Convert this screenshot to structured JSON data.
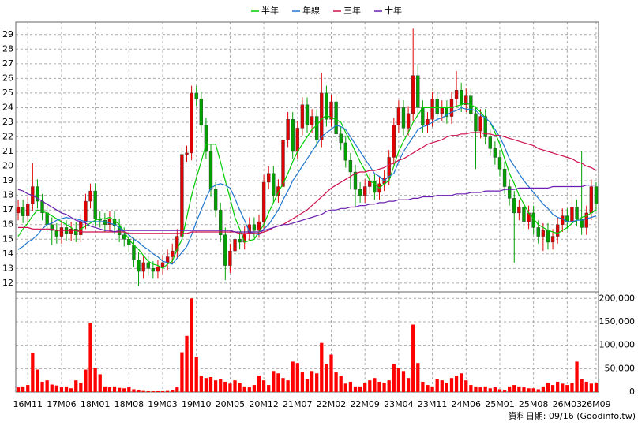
{
  "chart_data": {
    "type": "candlestick",
    "categories": [
      null,
      null,
      "16M11",
      null,
      null,
      null,
      null,
      null,
      null,
      "17M06",
      null,
      null,
      null,
      null,
      null,
      null,
      "18M01",
      null,
      null,
      null,
      null,
      null,
      null,
      "18M08",
      null,
      null,
      null,
      null,
      null,
      null,
      "19M03",
      null,
      null,
      null,
      null,
      null,
      null,
      "19M10",
      null,
      null,
      null,
      null,
      null,
      null,
      "20M05",
      null,
      null,
      null,
      null,
      null,
      null,
      "20M12",
      null,
      null,
      null,
      null,
      null,
      null,
      "21M07",
      null,
      null,
      null,
      null,
      null,
      null,
      "22M02",
      null,
      null,
      null,
      null,
      null,
      null,
      "22M09",
      null,
      null,
      null,
      null,
      null,
      null,
      "23M04",
      null,
      null,
      null,
      null,
      null,
      null,
      "23M11",
      null,
      null,
      null,
      null,
      null,
      null,
      "24M06",
      null,
      null,
      null,
      null,
      null,
      null,
      "25M01",
      null,
      null,
      null,
      null,
      null,
      null,
      "25M08",
      null,
      null,
      null,
      null,
      null,
      null,
      "26M03",
      null,
      null,
      null,
      null,
      null,
      "26M09"
    ],
    "open": [
      16.8,
      17.2,
      16.6,
      17.4,
      18.6,
      17.6,
      16.8,
      16.0,
      15.6,
      15.2,
      15.8,
      15.4,
      15.7,
      15.3,
      16.2,
      17.6,
      18.3,
      16.4,
      16.3,
      16.0,
      16.4,
      15.9,
      15.3,
      15.0,
      14.6,
      13.6,
      12.8,
      13.4,
      13.0,
      12.8,
      13.1,
      13.4,
      13.8,
      14.2,
      15.2,
      20.8,
      20.9,
      25.0,
      24.6,
      22.8,
      21.0,
      18.4,
      17.0,
      15.3,
      13.2,
      14.2,
      15.0,
      14.8,
      15.4,
      16.0,
      15.6,
      16.2,
      18.9,
      19.5,
      18.0,
      18.6,
      21.8,
      23.2,
      21.0,
      22.6,
      24.2,
      22.8,
      23.4,
      21.8,
      25.0,
      23.2,
      24.4,
      22.2,
      21.6,
      20.4,
      19.6,
      18.4,
      18.0,
      18.6,
      19.0,
      18.2,
      18.8,
      19.2,
      20.6,
      22.8,
      24.0,
      22.6,
      23.6,
      26.2,
      24.0,
      22.8,
      23.2,
      24.6,
      23.6,
      24.0,
      23.4,
      24.6,
      25.2,
      24.2,
      24.8,
      23.6,
      22.4,
      23.4,
      22.0,
      21.2,
      20.6,
      19.8,
      18.6,
      17.8,
      16.8,
      17.2,
      16.2,
      16.8,
      15.8,
      15.2,
      15.6,
      14.8,
      15.2,
      16.0,
      16.6,
      16.2,
      17.2,
      16.4,
      15.8,
      16.8,
      18.6
    ],
    "high": [
      17.7,
      17.7,
      17.9,
      20.2,
      19.1,
      18.1,
      17.3,
      16.5,
      16.1,
      16.3,
      16.3,
      16.2,
      16.2,
      16.7,
      18.1,
      18.8,
      18.8,
      16.9,
      16.8,
      16.9,
      16.9,
      16.4,
      15.8,
      15.5,
      15.1,
      14.1,
      13.9,
      13.9,
      13.5,
      13.6,
      13.9,
      14.3,
      14.7,
      15.7,
      21.3,
      21.4,
      25.5,
      25.5,
      25.1,
      23.3,
      21.5,
      18.9,
      17.5,
      15.8,
      14.7,
      15.5,
      15.5,
      15.9,
      16.5,
      16.5,
      16.7,
      19.4,
      20.0,
      20.0,
      19.1,
      22.3,
      23.7,
      23.7,
      23.1,
      24.7,
      24.7,
      23.9,
      23.9,
      26.4,
      25.5,
      24.9,
      24.9,
      22.7,
      22.1,
      20.9,
      20.1,
      18.9,
      19.1,
      19.5,
      19.5,
      19.3,
      19.7,
      21.1,
      23.3,
      24.5,
      24.5,
      24.1,
      29.4,
      27.0,
      24.5,
      23.7,
      25.1,
      25.1,
      24.5,
      24.5,
      25.1,
      26.5,
      25.7,
      25.3,
      25.3,
      24.1,
      23.9,
      23.9,
      22.5,
      21.7,
      21.1,
      20.3,
      19.1,
      18.3,
      17.7,
      17.7,
      17.3,
      17.3,
      16.3,
      16.1,
      16.1,
      15.7,
      16.5,
      17.1,
      17.1,
      19.2,
      17.7,
      21.0,
      17.3,
      19.1,
      18.9
    ],
    "low": [
      16.3,
      16.1,
      16.1,
      16.9,
      17.1,
      16.3,
      15.5,
      14.6,
      14.7,
      14.7,
      14.9,
      14.9,
      14.8,
      14.8,
      15.7,
      17.1,
      15.9,
      15.8,
      15.5,
      15.5,
      15.4,
      14.8,
      14.5,
      14.1,
      13.1,
      11.8,
      12.3,
      12.5,
      12.3,
      12.3,
      12.6,
      12.9,
      13.3,
      13.7,
      14.7,
      20.3,
      20.4,
      24.1,
      22.3,
      20.5,
      17.9,
      16.5,
      14.8,
      12.2,
      12.7,
      13.7,
      14.3,
      14.3,
      14.9,
      15.1,
      15.1,
      15.7,
      18.4,
      17.5,
      17.5,
      18.1,
      21.3,
      20.5,
      20.5,
      22.1,
      22.3,
      22.3,
      21.3,
      21.3,
      22.7,
      22.7,
      21.7,
      21.1,
      19.9,
      18.4,
      17.2,
      17.5,
      17.5,
      18.1,
      17.7,
      17.7,
      18.3,
      18.7,
      20.1,
      22.3,
      22.1,
      22.1,
      23.1,
      23.5,
      22.3,
      22.3,
      22.7,
      23.1,
      23.1,
      22.9,
      22.9,
      24.1,
      23.7,
      23.7,
      23.1,
      19.8,
      21.9,
      21.5,
      20.7,
      20.1,
      19.3,
      18.1,
      17.3,
      13.4,
      16.3,
      15.7,
      15.7,
      15.3,
      14.7,
      14.2,
      14.3,
      14.3,
      14.7,
      15.5,
      15.7,
      15.7,
      15.9,
      15.3,
      15.3,
      16.3,
      16.9
    ],
    "close": [
      17.2,
      16.6,
      17.4,
      18.6,
      17.6,
      16.8,
      16.0,
      15.6,
      15.2,
      15.8,
      15.4,
      15.7,
      15.3,
      16.2,
      17.6,
      18.3,
      16.4,
      16.3,
      16.0,
      16.4,
      15.9,
      15.3,
      15.0,
      14.6,
      13.6,
      12.8,
      13.4,
      13.0,
      12.8,
      13.1,
      13.4,
      13.8,
      14.2,
      15.2,
      20.8,
      20.9,
      25.0,
      24.6,
      22.8,
      21.0,
      18.4,
      17.0,
      15.3,
      13.2,
      14.2,
      15.0,
      14.8,
      15.4,
      16.0,
      15.6,
      16.2,
      18.9,
      19.5,
      18.0,
      18.6,
      21.8,
      23.2,
      21.0,
      22.6,
      24.2,
      22.8,
      23.4,
      21.8,
      25.0,
      23.2,
      24.4,
      22.2,
      21.6,
      20.4,
      19.6,
      18.4,
      18.0,
      18.6,
      19.0,
      18.2,
      18.8,
      19.2,
      20.6,
      22.8,
      24.0,
      22.6,
      23.6,
      26.2,
      24.0,
      22.8,
      23.2,
      24.6,
      23.6,
      24.0,
      23.4,
      24.6,
      25.2,
      24.2,
      24.8,
      23.6,
      22.4,
      23.4,
      22.0,
      21.2,
      20.6,
      19.8,
      18.6,
      17.8,
      16.8,
      17.2,
      16.2,
      16.8,
      15.8,
      15.2,
      15.6,
      14.8,
      15.2,
      16.0,
      16.6,
      16.2,
      17.2,
      16.4,
      15.8,
      16.8,
      18.6,
      17.4
    ],
    "up_color": "#e00000",
    "down_color": "#00a000",
    "series": [
      {
        "name": "半年",
        "color": "#00cc00",
        "values": [
          15.2,
          15.7,
          16.1,
          16.6,
          17.0,
          16.9,
          16.8,
          16.6,
          16.4,
          16.2,
          16.0,
          15.8,
          15.5,
          15.7,
          15.9,
          16.1,
          16.3,
          16.4,
          16.4,
          16.5,
          16.3,
          16.0,
          15.5,
          15.0,
          14.6,
          14.3,
          13.9,
          13.5,
          13.3,
          13.2,
          13.0,
          13.3,
          13.5,
          14.3,
          15.0,
          16.5,
          18.0,
          19.2,
          20.3,
          21.5,
          21.5,
          21.5,
          20.3,
          19.0,
          17.8,
          16.5,
          15.7,
          14.8,
          14.9,
          15.0,
          15.5,
          16.0,
          16.8,
          17.5,
          18.2,
          18.8,
          19.5,
          20.3,
          21.0,
          21.5,
          22.0,
          22.5,
          22.8,
          23.2,
          23.5,
          23.3,
          23.2,
          23.0,
          22.3,
          21.7,
          21.0,
          20.3,
          19.7,
          19.0,
          18.8,
          18.5,
          18.8,
          19.0,
          20.0,
          21.0,
          21.7,
          22.3,
          23.0,
          23.5,
          24.0,
          24.0,
          24.0,
          24.0,
          24.0,
          24.0,
          24.0,
          24.1,
          24.2,
          24.3,
          24.2,
          24.0,
          23.7,
          23.3,
          23.0,
          22.3,
          21.5,
          20.5,
          19.5,
          18.8,
          18.0,
          17.4,
          16.8,
          16.4,
          16.0,
          15.8,
          15.6,
          15.5,
          15.4,
          15.6,
          15.8,
          16.1,
          16.3,
          16.5,
          16.6,
          16.8,
          17.0
        ]
      },
      {
        "name": "年線",
        "color": "#1f77d0",
        "values": [
          14.3,
          14.5,
          14.8,
          15.0,
          15.3,
          15.7,
          16.0,
          16.1,
          16.3,
          16.4,
          16.5,
          16.4,
          16.4,
          16.3,
          16.2,
          16.2,
          16.2,
          16.2,
          16.2,
          16.1,
          16.0,
          15.8,
          15.5,
          15.3,
          15.0,
          14.8,
          14.5,
          14.3,
          14.0,
          13.8,
          13.5,
          13.4,
          13.3,
          13.7,
          14.1,
          14.5,
          15.3,
          16.2,
          17.0,
          17.8,
          18.5,
          18.7,
          18.8,
          18.7,
          18.5,
          17.8,
          17.0,
          16.3,
          15.5,
          15.4,
          15.3,
          15.7,
          16.0,
          16.5,
          17.0,
          17.7,
          18.3,
          19.0,
          19.5,
          20.0,
          20.5,
          21.0,
          21.5,
          22.0,
          22.3,
          22.5,
          22.8,
          22.7,
          22.5,
          22.0,
          21.5,
          21.0,
          20.5,
          20.0,
          19.5,
          19.3,
          19.0,
          19.3,
          19.5,
          20.3,
          21.0,
          21.5,
          22.0,
          22.5,
          22.7,
          22.8,
          23.0,
          23.2,
          23.3,
          23.5,
          23.7,
          23.8,
          24.0,
          23.9,
          23.9,
          23.8,
          23.5,
          23.3,
          23.0,
          22.5,
          22.0,
          21.3,
          20.5,
          20.0,
          19.5,
          19.0,
          18.6,
          18.2,
          17.8,
          17.4,
          17.1,
          16.7,
          16.5,
          16.4,
          16.2,
          16.2,
          16.3,
          16.3,
          16.4,
          16.5,
          16.6
        ]
      },
      {
        "name": "三年",
        "color": "#d0104c",
        "values": [
          15.8,
          15.8,
          15.8,
          15.7,
          15.7,
          15.7,
          15.7,
          15.7,
          15.6,
          15.6,
          15.6,
          15.6,
          15.6,
          15.5,
          15.5,
          15.5,
          15.5,
          15.5,
          15.5,
          15.5,
          15.5,
          15.5,
          15.5,
          15.4,
          15.4,
          15.4,
          15.4,
          15.4,
          15.4,
          15.4,
          15.4,
          15.4,
          15.4,
          15.4,
          15.4,
          15.4,
          15.5,
          15.5,
          15.5,
          15.5,
          15.5,
          15.5,
          15.5,
          15.5,
          15.5,
          15.5,
          15.4,
          15.4,
          15.4,
          15.4,
          15.4,
          15.5,
          15.6,
          15.8,
          15.9,
          16.0,
          16.2,
          16.4,
          16.6,
          16.8,
          17.0,
          17.3,
          17.6,
          17.9,
          18.2,
          18.5,
          18.7,
          18.9,
          19.1,
          19.3,
          19.5,
          19.6,
          19.6,
          19.7,
          19.7,
          19.8,
          19.9,
          20.1,
          20.2,
          20.4,
          20.5,
          20.7,
          20.9,
          21.1,
          21.3,
          21.5,
          21.6,
          21.7,
          21.8,
          22.0,
          22.1,
          22.1,
          22.2,
          22.2,
          22.3,
          22.3,
          22.3,
          22.2,
          22.2,
          22.1,
          22.1,
          22.0,
          21.9,
          21.8,
          21.7,
          21.6,
          21.5,
          21.4,
          21.2,
          21.1,
          21.0,
          20.9,
          20.8,
          20.7,
          20.6,
          20.5,
          20.3,
          20.2,
          20.0,
          19.9,
          19.7
        ]
      },
      {
        "name": "十年",
        "color": "#6a1fb0",
        "values": [
          18.4,
          18.3,
          18.1,
          18.0,
          17.8,
          17.6,
          17.4,
          17.2,
          17.0,
          16.8,
          16.7,
          16.5,
          16.3,
          16.2,
          16.1,
          15.9,
          15.8,
          15.7,
          15.6,
          15.6,
          15.5,
          15.6,
          15.6,
          15.6,
          15.6,
          15.6,
          15.6,
          15.6,
          15.6,
          15.6,
          15.6,
          15.6,
          15.6,
          15.6,
          15.6,
          15.6,
          15.6,
          15.6,
          15.6,
          15.6,
          15.6,
          15.6,
          15.6,
          15.6,
          15.6,
          15.5,
          15.5,
          15.5,
          15.5,
          15.5,
          15.5,
          15.6,
          15.7,
          15.8,
          15.9,
          16.0,
          16.0,
          16.1,
          16.2,
          16.3,
          16.4,
          16.5,
          16.6,
          16.7,
          16.9,
          17.0,
          17.0,
          17.1,
          17.1,
          17.2,
          17.2,
          17.3,
          17.3,
          17.4,
          17.4,
          17.5,
          17.5,
          17.6,
          17.6,
          17.7,
          17.7,
          17.7,
          17.8,
          17.8,
          17.9,
          17.9,
          17.9,
          18.0,
          18.0,
          18.0,
          18.0,
          18.1,
          18.1,
          18.1,
          18.2,
          18.2,
          18.2,
          18.3,
          18.3,
          18.3,
          18.3,
          18.4,
          18.4,
          18.4,
          18.5,
          18.5,
          18.5,
          18.5,
          18.5,
          18.5,
          18.5,
          18.6,
          18.6,
          18.6,
          18.6,
          18.6,
          18.6,
          18.6,
          18.7,
          18.7,
          18.7
        ]
      }
    ],
    "ylim": [
      11.4,
      29.85
    ],
    "yticks": [
      12,
      13,
      14,
      15,
      16,
      17,
      18,
      19,
      20,
      21,
      22,
      23,
      24,
      25,
      26,
      27,
      28,
      29
    ],
    "grid": true,
    "volume": {
      "color": "#ff0000",
      "values": [
        10000,
        12000,
        15000,
        83000,
        48000,
        22000,
        25000,
        16000,
        14000,
        10000,
        12000,
        8000,
        25000,
        20000,
        48000,
        148000,
        52000,
        38000,
        12000,
        10000,
        12000,
        9000,
        8000,
        10000,
        6000,
        5000,
        4000,
        3000,
        2000,
        2000,
        3000,
        4000,
        5000,
        10000,
        85000,
        120000,
        200000,
        75000,
        35000,
        30000,
        32000,
        25000,
        28000,
        22000,
        18000,
        25000,
        20000,
        12000,
        10000,
        15000,
        35000,
        25000,
        15000,
        45000,
        40000,
        30000,
        25000,
        65000,
        62000,
        42000,
        28000,
        45000,
        40000,
        105000,
        60000,
        80000,
        42000,
        35000,
        18000,
        22000,
        12000,
        12000,
        20000,
        25000,
        30000,
        22000,
        20000,
        25000,
        60000,
        52000,
        45000,
        30000,
        144000,
        62000,
        22000,
        15000,
        12000,
        28000,
        25000,
        20000,
        30000,
        35000,
        40000,
        25000,
        15000,
        12000,
        10000,
        12000,
        8000,
        10000,
        6000,
        5000,
        12000,
        15000,
        12000,
        10000,
        8000,
        8000,
        6000,
        12000,
        20000,
        15000,
        22000,
        18000,
        15000,
        20000,
        65000,
        28000,
        22000,
        18000,
        20000
      ],
      "y2lim": [
        0,
        214000
      ],
      "y2ticks": [
        0,
        {
          "value": 50000,
          "label": "50,000"
        },
        {
          "value": 100000,
          "label": "100,000"
        },
        {
          "value": 150000,
          "label": "150,000"
        },
        {
          "value": 200000,
          "label": "200,000"
        }
      ]
    },
    "source": "資料日期: 09/16 (Goodinfo.tw)"
  }
}
